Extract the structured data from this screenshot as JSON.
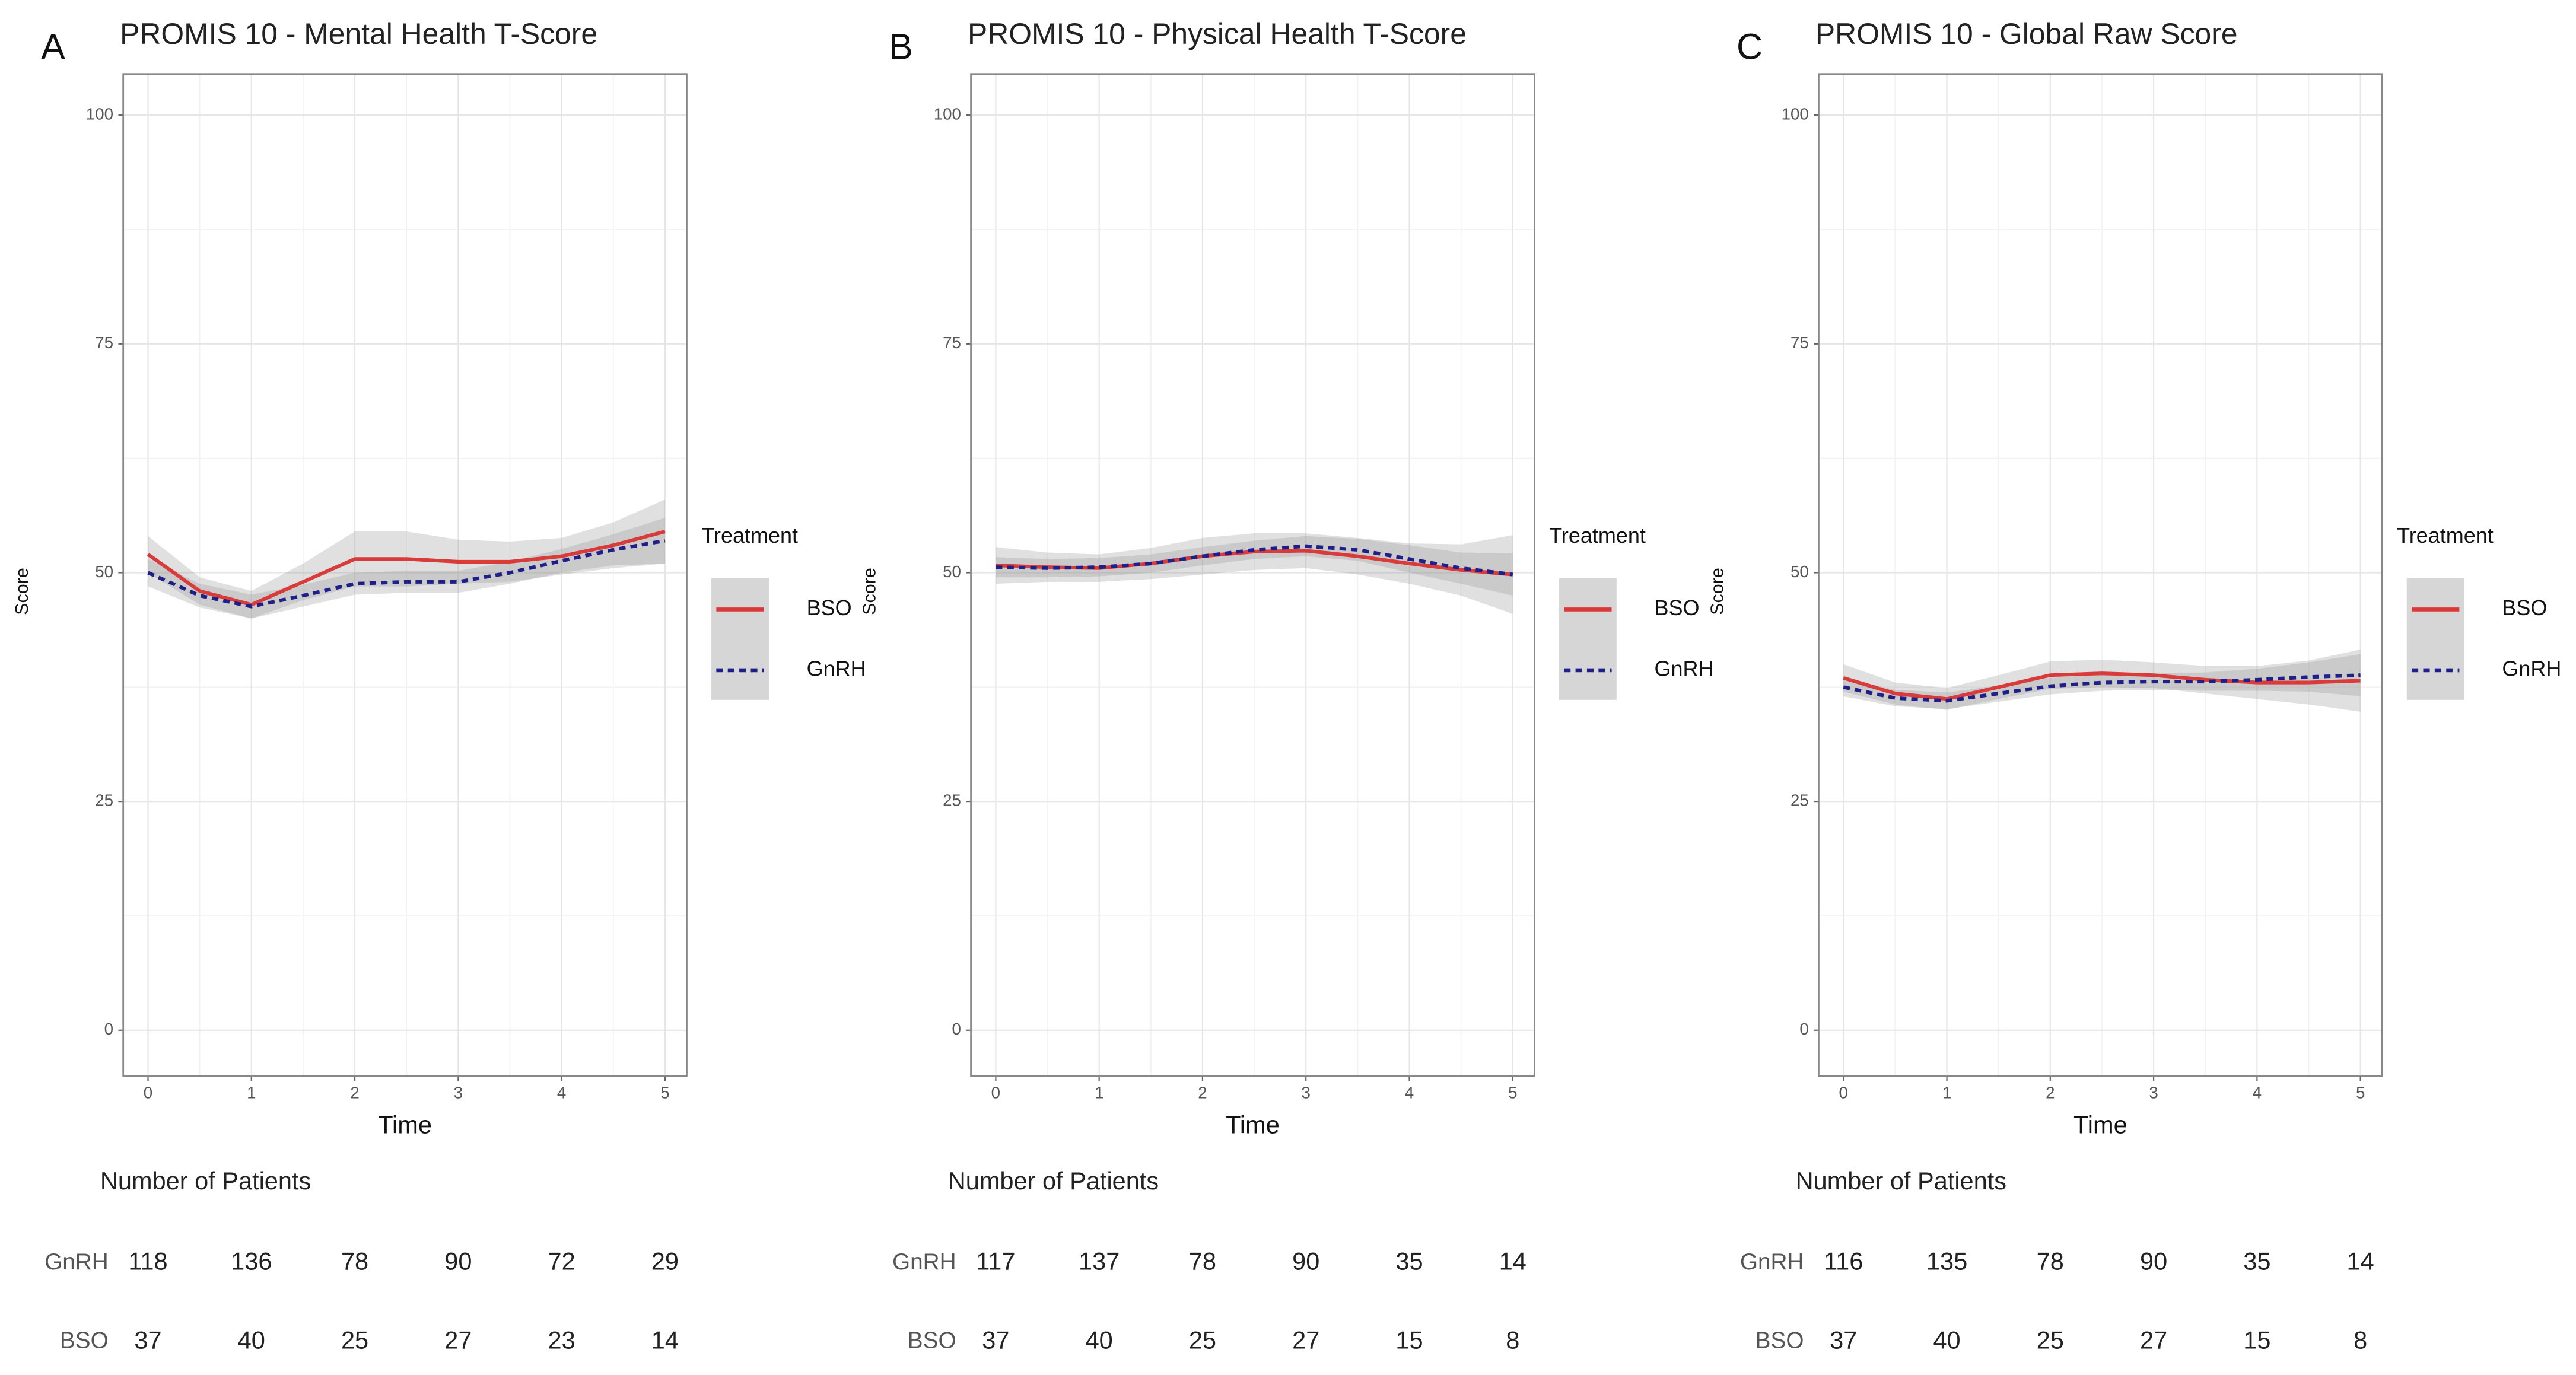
{
  "chart_data": [
    {
      "type": "line",
      "panel_label": "A",
      "title": "PROMIS 10 - Mental Health T-Score",
      "xlabel": "Time",
      "ylabel": "Score",
      "x": [
        0,
        0.5,
        1,
        1.5,
        2,
        2.5,
        3,
        3.5,
        4,
        4.5,
        5
      ],
      "series": [
        {
          "name": "BSO",
          "color": "#d93b3b",
          "line_style": "solid",
          "values": [
            52,
            48,
            46.5,
            49,
            51.5,
            51.5,
            51.2,
            51.2,
            51.8,
            53,
            54.5
          ],
          "lower": [
            50,
            46.5,
            45,
            47,
            48.5,
            48.5,
            48.8,
            49,
            49.8,
            50.5,
            51
          ],
          "upper": [
            54,
            49.5,
            48,
            51,
            54.5,
            54.5,
            53.6,
            53.4,
            53.8,
            55.5,
            58
          ]
        },
        {
          "name": "GnRH",
          "color": "#1f1f8a",
          "line_style": "dashed",
          "values": [
            50,
            47.5,
            46.3,
            47.5,
            48.8,
            49,
            49,
            50,
            51.3,
            52.5,
            53.5
          ],
          "lower": [
            48.5,
            46.2,
            45,
            46.3,
            47.6,
            47.8,
            47.8,
            48.8,
            50,
            50.8,
            51
          ],
          "upper": [
            51.5,
            48.8,
            47.6,
            48.7,
            50,
            50.2,
            50.2,
            51.2,
            52.6,
            54.2,
            56
          ]
        }
      ],
      "xlim": [
        -0.24,
        5.21
      ],
      "ylim": [
        -5,
        104.5
      ],
      "xticks": [
        0,
        1,
        2,
        3,
        4,
        5
      ],
      "yticks": [
        0,
        25,
        50,
        75,
        100
      ],
      "grid": true,
      "legend_title": "Treatment",
      "table": {
        "title": "Number of Patients",
        "rows": [
          {
            "label": "GnRH",
            "values": [
              118,
              136,
              78,
              90,
              72,
              29
            ]
          },
          {
            "label": "BSO",
            "values": [
              37,
              40,
              25,
              27,
              23,
              14
            ]
          }
        ]
      }
    },
    {
      "type": "line",
      "panel_label": "B",
      "title": "PROMIS 10 - Physical Health T-Score",
      "xlabel": "Time",
      "ylabel": "Score",
      "x": [
        0,
        0.5,
        1,
        1.5,
        2,
        2.5,
        3,
        3.5,
        4,
        4.5,
        5
      ],
      "series": [
        {
          "name": "BSO",
          "color": "#d93b3b",
          "line_style": "solid",
          "values": [
            50.8,
            50.6,
            50.5,
            51,
            51.8,
            52.3,
            52.4,
            51.8,
            51,
            50.3,
            49.8
          ],
          "lower": [
            48.8,
            49,
            49,
            49.3,
            49.8,
            50.3,
            50.5,
            49.8,
            48.8,
            47.5,
            45.5
          ],
          "upper": [
            52.8,
            52.2,
            52,
            52.7,
            53.8,
            54.3,
            54.3,
            53.8,
            53.2,
            53.1,
            54.1
          ]
        },
        {
          "name": "GnRH",
          "color": "#1f1f8a",
          "line_style": "dashed",
          "values": [
            50.6,
            50.5,
            50.6,
            51,
            51.8,
            52.5,
            52.9,
            52.5,
            51.5,
            50.5,
            49.8
          ],
          "lower": [
            49.5,
            49.5,
            49.6,
            50,
            50.8,
            51.5,
            51.8,
            51.3,
            50,
            48.8,
            47.5
          ],
          "upper": [
            51.7,
            51.5,
            51.6,
            52,
            52.8,
            53.5,
            54,
            53.7,
            53,
            52.2,
            52.1
          ]
        }
      ],
      "xlim": [
        -0.24,
        5.21
      ],
      "ylim": [
        -5,
        104.5
      ],
      "xticks": [
        0,
        1,
        2,
        3,
        4,
        5
      ],
      "yticks": [
        0,
        25,
        50,
        75,
        100
      ],
      "grid": true,
      "legend_title": "Treatment",
      "table": {
        "title": "Number of Patients",
        "rows": [
          {
            "label": "GnRH",
            "values": [
              117,
              137,
              78,
              90,
              35,
              14
            ]
          },
          {
            "label": "BSO",
            "values": [
              37,
              40,
              25,
              27,
              15,
              8
            ]
          }
        ]
      }
    },
    {
      "type": "line",
      "panel_label": "C",
      "title": "PROMIS 10 - Global Raw Score",
      "xlabel": "Time",
      "ylabel": "Score",
      "x": [
        0,
        0.5,
        1,
        1.5,
        2,
        2.5,
        3,
        3.5,
        4,
        4.5,
        5
      ],
      "series": [
        {
          "name": "BSO",
          "color": "#d93b3b",
          "line_style": "solid",
          "values": [
            38.5,
            36.8,
            36.2,
            37.5,
            38.8,
            39,
            38.8,
            38.3,
            38,
            38,
            38.2
          ],
          "lower": [
            37,
            35.6,
            35,
            36.2,
            37.3,
            37.5,
            37.4,
            36.8,
            36.2,
            35.6,
            34.8
          ],
          "upper": [
            40,
            38,
            37.4,
            38.8,
            40.3,
            40.5,
            40.2,
            39.8,
            39.8,
            40.4,
            41.6
          ]
        },
        {
          "name": "GnRH",
          "color": "#1f1f8a",
          "line_style": "dashed",
          "values": [
            37.5,
            36.3,
            36,
            36.8,
            37.6,
            38,
            38.1,
            38.1,
            38.3,
            38.6,
            38.8
          ],
          "lower": [
            36.5,
            35.4,
            35.1,
            35.9,
            36.7,
            37.1,
            37.2,
            37.1,
            37.1,
            37,
            36.5
          ],
          "upper": [
            38.5,
            37.2,
            36.9,
            37.7,
            38.5,
            38.9,
            39,
            39.1,
            39.5,
            40.2,
            41.1
          ]
        }
      ],
      "xlim": [
        -0.24,
        5.21
      ],
      "ylim": [
        -5,
        104.5
      ],
      "xticks": [
        0,
        1,
        2,
        3,
        4,
        5
      ],
      "yticks": [
        0,
        25,
        50,
        75,
        100
      ],
      "grid": true,
      "legend_title": "Treatment",
      "table": {
        "title": "Number of Patients",
        "rows": [
          {
            "label": "GnRH",
            "values": [
              116,
              135,
              78,
              90,
              35,
              14
            ]
          },
          {
            "label": "BSO",
            "values": [
              37,
              40,
              25,
              27,
              15,
              8
            ]
          }
        ]
      }
    }
  ]
}
